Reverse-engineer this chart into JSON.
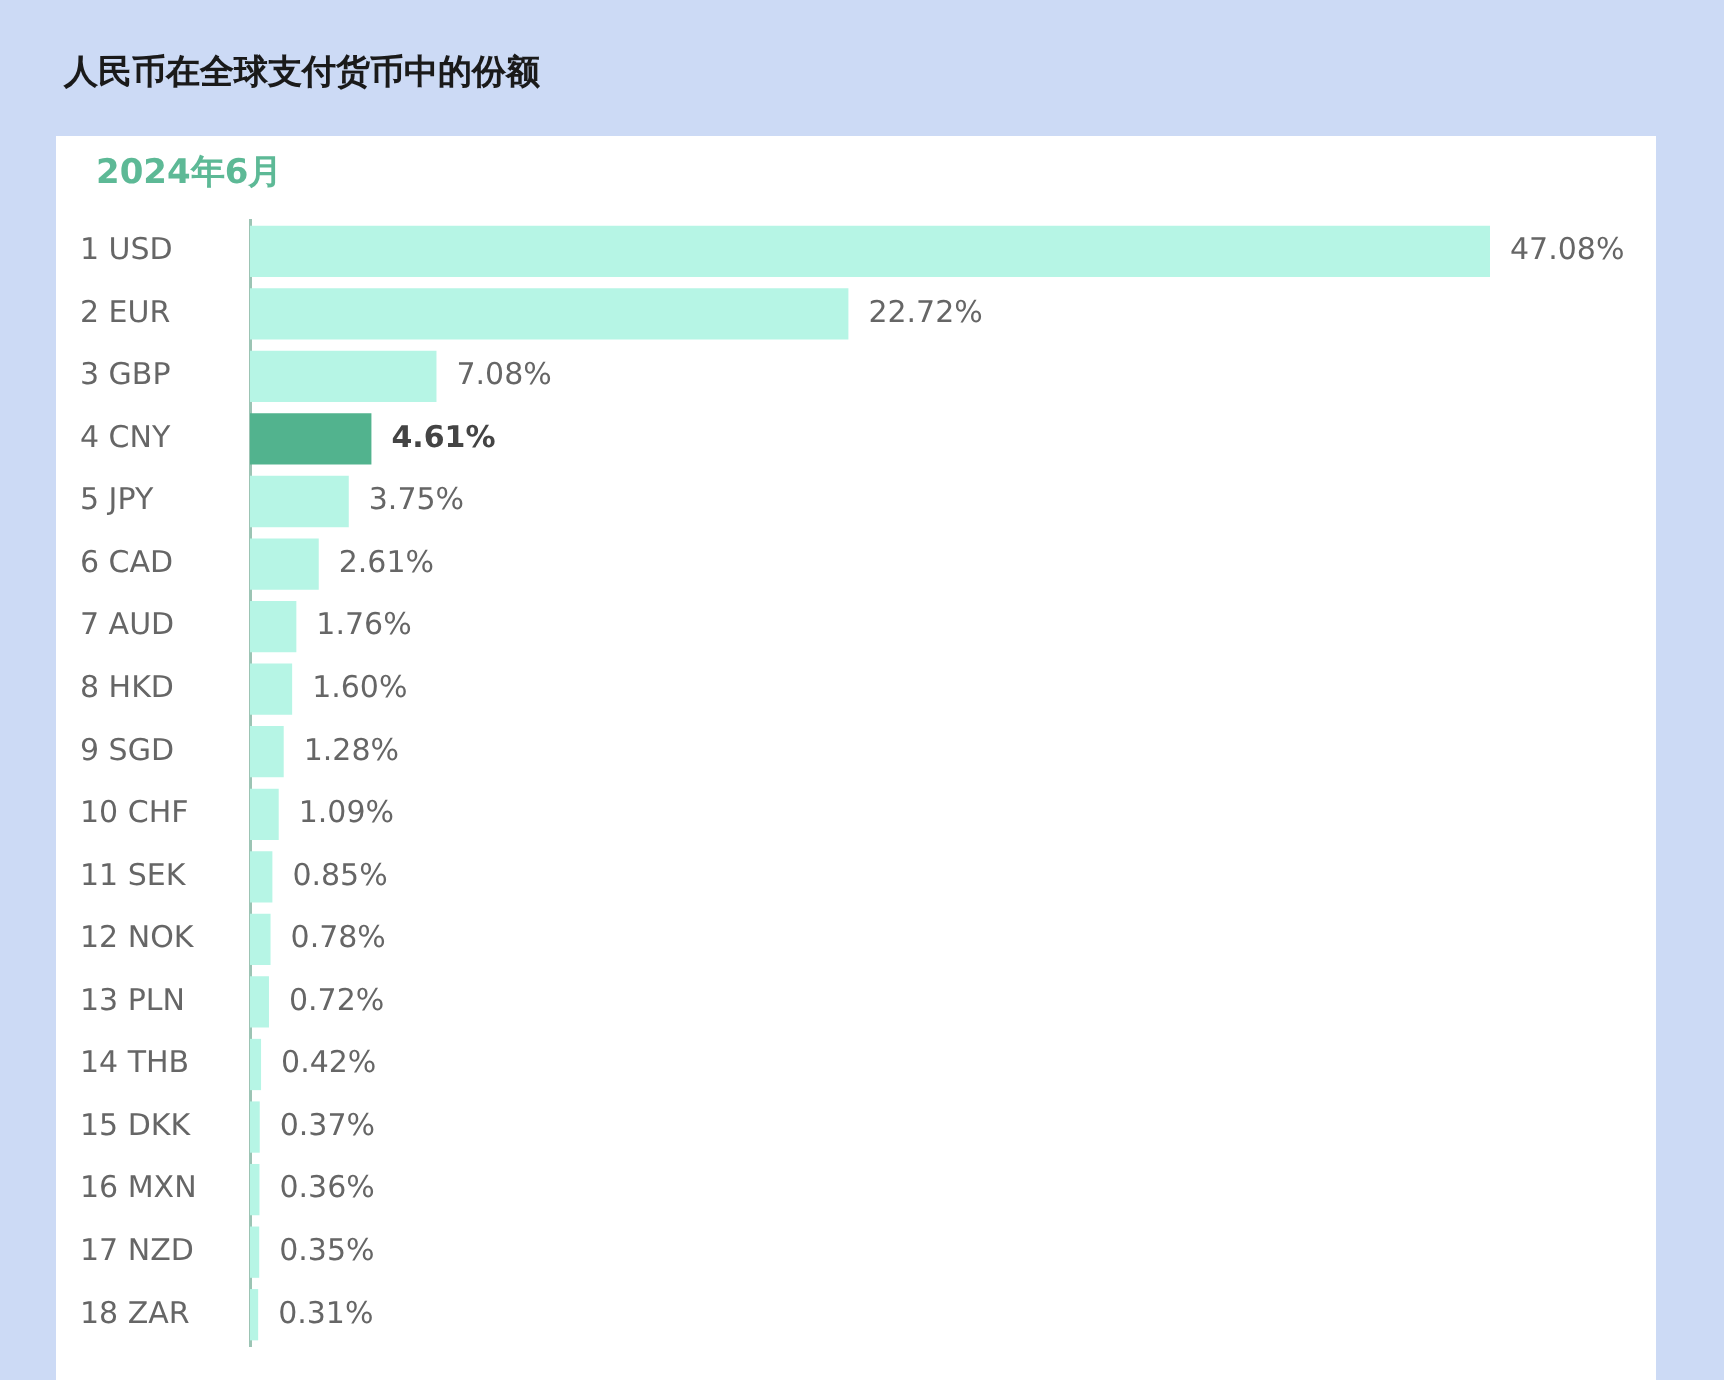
{
  "chart_data": {
    "type": "bar",
    "orientation": "horizontal",
    "title": "人民币在全球支付货币中的份额",
    "subtitle": "2024年6月",
    "categories": [
      "1 USD",
      "2 EUR",
      "3 GBP",
      "4 CNY",
      "5 JPY",
      "6 CAD",
      "7 AUD",
      "8 HKD",
      "9 SGD",
      "10 CHF",
      "11 SEK",
      "12 NOK",
      "13 PLN",
      "14 THB",
      "15 DKK",
      "16 MXN",
      "17 NZD",
      "18 ZAR"
    ],
    "values": [
      47.08,
      22.72,
      7.08,
      4.61,
      3.75,
      2.61,
      1.76,
      1.6,
      1.28,
      1.09,
      0.85,
      0.78,
      0.72,
      0.42,
      0.37,
      0.36,
      0.35,
      0.31
    ],
    "colors": [
      "#b6f5e5",
      "#b6f5e5",
      "#b6f5e5",
      "#52b38e",
      "#b6f5e5",
      "#b6f5e5",
      "#b6f5e5",
      "#b6f5e5",
      "#b6f5e5",
      "#b6f5e5",
      "#b6f5e5",
      "#b6f5e5",
      "#b6f5e5",
      "#b6f5e5",
      "#b6f5e5",
      "#b6f5e5",
      "#b6f5e5",
      "#b6f5e5"
    ],
    "value_labels": [
      "47.08%",
      "22.72%",
      "7.08%",
      "4.61%",
      "3.75%",
      "2.61%",
      "1.76%",
      "1.60%",
      "1.28%",
      "1.09%",
      "0.85%",
      "0.78%",
      "0.72%",
      "0.42%",
      "0.37%",
      "0.36%",
      "0.35%",
      "0.31%"
    ]
  }
}
